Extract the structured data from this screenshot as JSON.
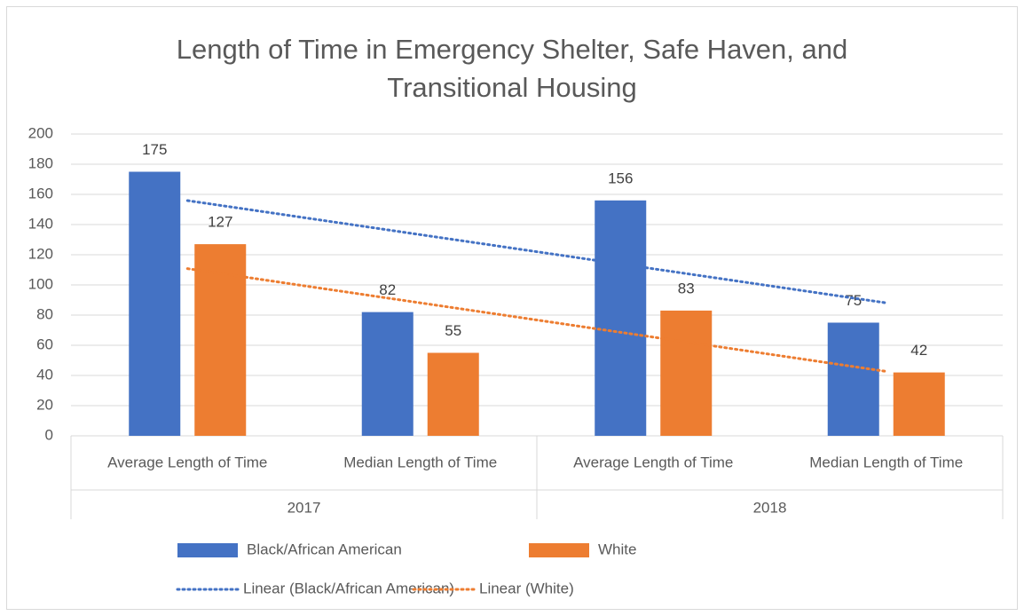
{
  "chart_data": {
    "type": "bar",
    "title": [
      "Length of Time in Emergency Shelter, Safe Haven, and",
      "Transitional Housing"
    ],
    "groups": [
      {
        "name": "2017",
        "categories": [
          "Average Length of Time",
          "Median Length of Time"
        ]
      },
      {
        "name": "2018",
        "categories": [
          "Average Length of Time",
          "Median Length of Time"
        ]
      }
    ],
    "series": [
      {
        "name": "Black/African American",
        "color": "#4472c4",
        "values": [
          175,
          82,
          156,
          75
        ]
      },
      {
        "name": "White",
        "color": "#ed7d31",
        "values": [
          127,
          55,
          83,
          42
        ]
      }
    ],
    "trendlines": [
      {
        "name": "Linear (Black/African American)",
        "series": 0,
        "fit": "linear"
      },
      {
        "name": "Linear (White)",
        "series": 1,
        "fit": "linear"
      }
    ],
    "ylim": [
      0,
      200
    ],
    "yticks": [
      0,
      20,
      40,
      60,
      80,
      100,
      120,
      140,
      160,
      180,
      200
    ],
    "grid": true,
    "data_labels": true,
    "legend": "bottom"
  }
}
